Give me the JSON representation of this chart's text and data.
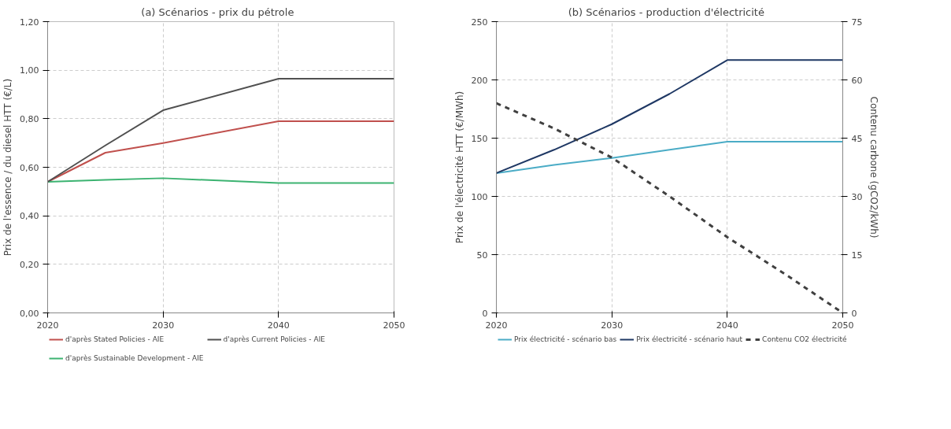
{
  "chart_data": [
    {
      "type": "line",
      "title": "(a)   Scénarios - prix du pétrole",
      "ylabel": "Prix de l'essence / du diesel HTT (€/L)",
      "x": [
        2020,
        2025,
        2030,
        2040,
        2050
      ],
      "xlim": [
        2020,
        2050
      ],
      "xticks": [
        2020,
        2030,
        2040,
        2050
      ],
      "ylim": [
        0,
        1.2
      ],
      "yticks": [
        {
          "value": 0,
          "label": "0,00"
        },
        {
          "value": 0.2,
          "label": "0,20"
        },
        {
          "value": 0.4,
          "label": "0,40"
        },
        {
          "value": 0.6,
          "label": "0,60"
        },
        {
          "value": 0.8,
          "label": "0,80"
        },
        {
          "value": 1.0,
          "label": "1,00"
        },
        {
          "value": 1.2,
          "label": "1,20"
        }
      ],
      "grid": true,
      "legend": "bottom",
      "series": [
        {
          "name": "d'après Stated Policies - AIE",
          "color": "#c0504d",
          "values": [
            0.54,
            0.66,
            0.7,
            0.79,
            0.79
          ]
        },
        {
          "name": "d'après Sustainable Development - AIE",
          "color": "#3cb371",
          "values": [
            0.54,
            0.548,
            0.555,
            0.535,
            0.535
          ]
        },
        {
          "name": "d'après Current Policies - AIE",
          "color": "#505050",
          "values": [
            0.54,
            0.69,
            0.835,
            0.965,
            0.965
          ]
        }
      ]
    },
    {
      "type": "line",
      "title": "(b)   Scénarios - production d'électricité",
      "ylabel": "Prix de l'électricité HTT (€/MWh)",
      "y2label": "Contenu carbone (gCO2/kWh)",
      "x": [
        2020,
        2025,
        2030,
        2035,
        2040,
        2045,
        2050
      ],
      "xlim": [
        2020,
        2050
      ],
      "xticks": [
        2020,
        2030,
        2040,
        2050
      ],
      "ylim": [
        0,
        250
      ],
      "yticks": [
        0,
        50,
        100,
        150,
        200,
        250
      ],
      "y2lim": [
        0,
        75
      ],
      "y2ticks": [
        0,
        15,
        30,
        45,
        60,
        75
      ],
      "grid": true,
      "legend": "bottom",
      "series": [
        {
          "name": "Prix électricité - scénario bas",
          "color": "#4bacc6",
          "values": [
            120,
            127,
            133,
            140,
            147,
            147,
            147
          ]
        },
        {
          "name": "Prix électricité - scénario haut",
          "color": "#1f3864",
          "values": [
            120,
            140,
            162,
            188,
            217,
            217,
            217
          ]
        },
        {
          "name": "Contenu CO2 électricité",
          "color": "#404040",
          "axis": "y2",
          "line_style": "dashed",
          "values": [
            54,
            47.5,
            40,
            30,
            19.5,
            10,
            0
          ]
        }
      ]
    }
  ]
}
